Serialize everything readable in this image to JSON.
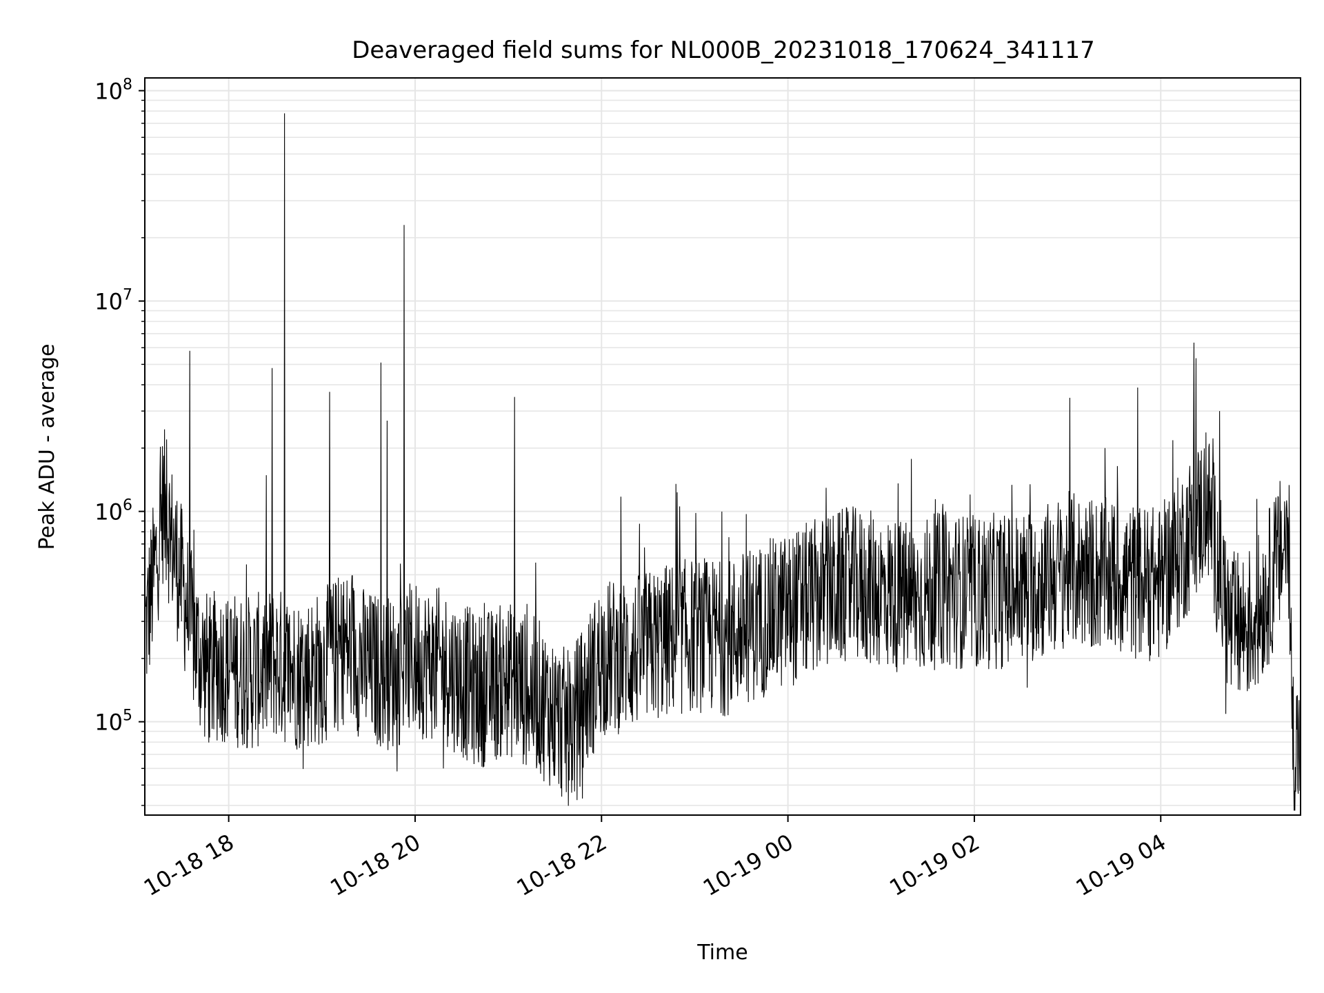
{
  "chart_data": {
    "type": "line",
    "title": "Deaveraged field sums for NL000B_20231018_170624_341117",
    "xlabel": "Time",
    "ylabel": "Peak ADU - average",
    "yscale": "log",
    "ylim": [
      36000,
      115000000
    ],
    "xlim": [
      "2023-10-18T17:06",
      "2023-10-19T05:30"
    ],
    "grid": true,
    "x_ticks": [
      {
        "label": "10-18 18",
        "t": "2023-10-18T18:00"
      },
      {
        "label": "10-18 20",
        "t": "2023-10-18T20:00"
      },
      {
        "label": "10-18 22",
        "t": "2023-10-18T22:00"
      },
      {
        "label": "10-19 00",
        "t": "2023-10-19T00:00"
      },
      {
        "label": "10-19 02",
        "t": "2023-10-19T02:00"
      },
      {
        "label": "10-19 04",
        "t": "2023-10-19T04:00"
      }
    ],
    "y_ticks": [
      {
        "base": "10",
        "exp": "5",
        "value": 100000
      },
      {
        "base": "10",
        "exp": "6",
        "value": 1000000
      },
      {
        "base": "10",
        "exp": "7",
        "value": 10000000
      },
      {
        "base": "10",
        "exp": "8",
        "value": 100000000
      }
    ],
    "series": [
      {
        "color": "#000000",
        "points": [
          [
            "2023-10-18T17:06",
            260000
          ],
          [
            "2023-10-18T17:12",
            500000
          ],
          [
            "2023-10-18T17:18",
            1100000
          ],
          [
            "2023-10-18T17:24",
            700000
          ],
          [
            "2023-10-18T17:30",
            450000
          ],
          [
            "2023-10-18T17:36",
            280000
          ],
          [
            "2023-10-18T17:42",
            200000
          ],
          [
            "2023-10-18T17:48",
            170000
          ],
          [
            "2023-10-18T17:54",
            190000
          ],
          [
            "2023-10-18T18:00",
            180000
          ],
          [
            "2023-10-18T18:15",
            170000
          ],
          [
            "2023-10-18T18:30",
            190000
          ],
          [
            "2023-10-18T18:45",
            170000
          ],
          [
            "2023-10-18T19:00",
            180000
          ],
          [
            "2023-10-18T19:15",
            230000
          ],
          [
            "2023-10-18T19:30",
            180000
          ],
          [
            "2023-10-18T19:45",
            170000
          ],
          [
            "2023-10-18T20:00",
            200000
          ],
          [
            "2023-10-18T20:20",
            180000
          ],
          [
            "2023-10-18T20:40",
            140000
          ],
          [
            "2023-10-18T21:00",
            160000
          ],
          [
            "2023-10-18T21:20",
            130000
          ],
          [
            "2023-10-18T21:40",
            90000
          ],
          [
            "2023-10-18T22:00",
            200000
          ],
          [
            "2023-10-18T22:20",
            210000
          ],
          [
            "2023-10-18T22:40",
            240000
          ],
          [
            "2023-10-18T23:00",
            260000
          ],
          [
            "2023-10-18T23:20",
            250000
          ],
          [
            "2023-10-18T23:40",
            300000
          ],
          [
            "2023-10-19T00:00",
            340000
          ],
          [
            "2023-10-19T00:20",
            400000
          ],
          [
            "2023-10-19T00:40",
            450000
          ],
          [
            "2023-10-19T01:00",
            420000
          ],
          [
            "2023-10-19T01:20",
            380000
          ],
          [
            "2023-10-19T01:40",
            430000
          ],
          [
            "2023-10-19T02:00",
            410000
          ],
          [
            "2023-10-19T02:20",
            420000
          ],
          [
            "2023-10-19T02:40",
            450000
          ],
          [
            "2023-10-19T03:00",
            530000
          ],
          [
            "2023-10-19T03:20",
            500000
          ],
          [
            "2023-10-19T03:40",
            470000
          ],
          [
            "2023-10-19T04:00",
            450000
          ],
          [
            "2023-10-19T04:15",
            700000
          ],
          [
            "2023-10-19T04:30",
            1100000
          ],
          [
            "2023-10-19T04:45",
            270000
          ],
          [
            "2023-10-19T05:00",
            300000
          ],
          [
            "2023-10-19T05:15",
            550000
          ],
          [
            "2023-10-19T05:22",
            800000
          ],
          [
            "2023-10-19T05:25",
            85000
          ],
          [
            "2023-10-19T05:30",
            70000
          ]
        ]
      }
    ],
    "spikes": [
      [
        "2023-10-18T17:20",
        2200000
      ],
      [
        "2023-10-18T17:35",
        5800000
      ],
      [
        "2023-10-18T18:28",
        4800000
      ],
      [
        "2023-10-18T18:36",
        78000000
      ],
      [
        "2023-10-18T19:05",
        3700000
      ],
      [
        "2023-10-18T19:38",
        5100000
      ],
      [
        "2023-10-18T19:42",
        2700000
      ],
      [
        "2023-10-18T19:53",
        23000000
      ],
      [
        "2023-10-18T21:04",
        3500000
      ],
      [
        "2023-10-18T22:48",
        1350000
      ],
      [
        "2023-10-19T03:24",
        2000000
      ],
      [
        "2023-10-19T04:38",
        3000000
      ]
    ]
  }
}
